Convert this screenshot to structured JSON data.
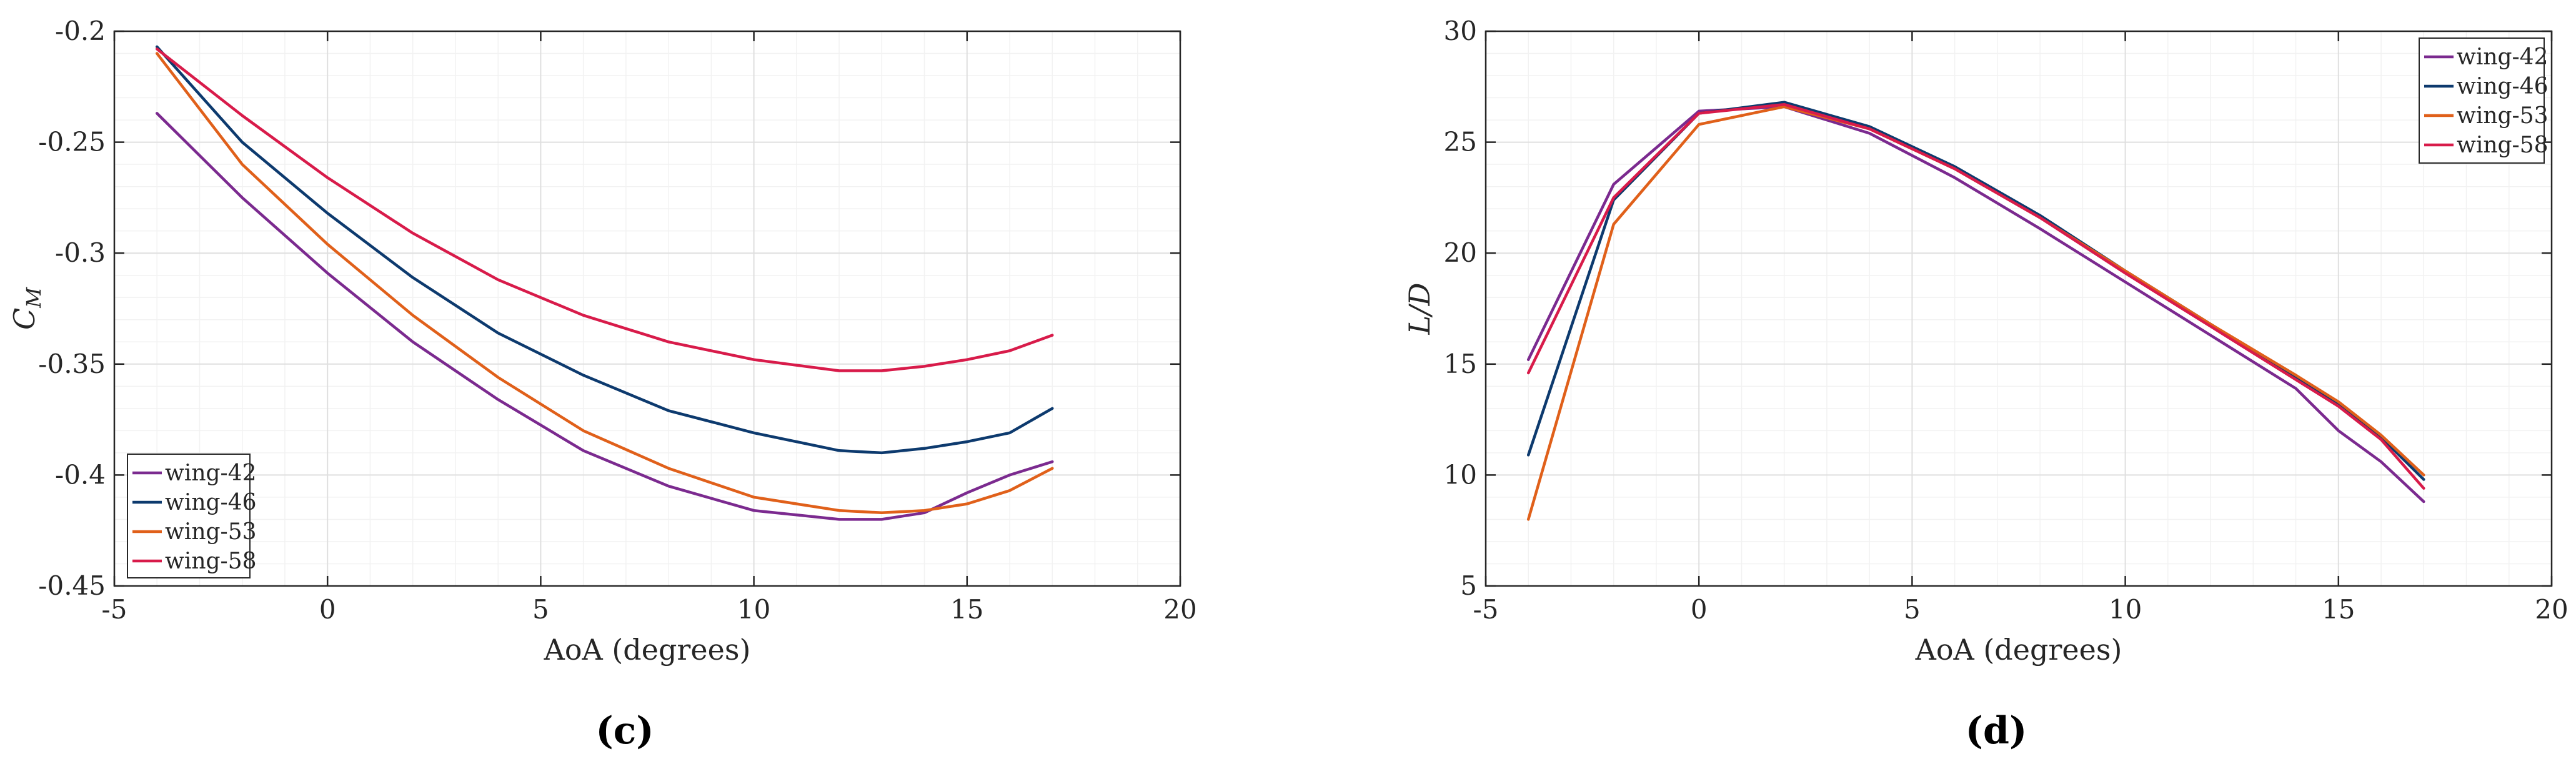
{
  "chart_data": [
    {
      "type": "line",
      "caption": "(c)",
      "ylabel_main": "C",
      "ylabel_sub": "M",
      "xlabel": "AoA (degrees)",
      "xlim": [
        -5,
        20
      ],
      "ylim": [
        -0.45,
        -0.2
      ],
      "xticks": [
        -5,
        0,
        5,
        10,
        15,
        20
      ],
      "yticks": [
        -0.45,
        -0.4,
        -0.35,
        -0.3,
        -0.25,
        -0.2
      ],
      "ytick_labels": [
        "-0.45",
        "-0.4",
        "-0.35",
        "-0.3",
        "-0.25",
        "-0.2"
      ],
      "grid": true,
      "legend_position": "bottom-left",
      "series": [
        {
          "name": "wing-42",
          "color": "#7b2a8f",
          "x": [
            -4,
            -2,
            0,
            2,
            4,
            6,
            8,
            10,
            12,
            13,
            14,
            15,
            16,
            17
          ],
          "y": [
            -0.237,
            -0.275,
            -0.309,
            -0.34,
            -0.366,
            -0.389,
            -0.405,
            -0.416,
            -0.42,
            -0.42,
            -0.417,
            -0.408,
            -0.4,
            -0.394
          ]
        },
        {
          "name": "wing-46",
          "color": "#0d3a6e",
          "x": [
            -4,
            -2,
            0,
            2,
            4,
            6,
            8,
            10,
            12,
            13,
            14,
            15,
            16,
            17
          ],
          "y": [
            -0.207,
            -0.25,
            -0.282,
            -0.311,
            -0.336,
            -0.355,
            -0.371,
            -0.381,
            -0.389,
            -0.39,
            -0.388,
            -0.385,
            -0.381,
            -0.37
          ]
        },
        {
          "name": "wing-53",
          "color": "#e0601a",
          "x": [
            -4,
            -2,
            0,
            2,
            4,
            6,
            8,
            10,
            12,
            13,
            14,
            15,
            16,
            17
          ],
          "y": [
            -0.21,
            -0.26,
            -0.296,
            -0.328,
            -0.356,
            -0.38,
            -0.397,
            -0.41,
            -0.416,
            -0.417,
            -0.416,
            -0.413,
            -0.407,
            -0.397
          ]
        },
        {
          "name": "wing-58",
          "color": "#d81b4a",
          "x": [
            -4,
            -2,
            0,
            2,
            4,
            6,
            8,
            10,
            12,
            13,
            14,
            15,
            16,
            17
          ],
          "y": [
            -0.208,
            -0.238,
            -0.266,
            -0.291,
            -0.312,
            -0.328,
            -0.34,
            -0.348,
            -0.353,
            -0.353,
            -0.351,
            -0.348,
            -0.344,
            -0.337
          ]
        }
      ]
    },
    {
      "type": "line",
      "caption": "(d)",
      "ylabel_main": "L/D",
      "xlabel": "AoA (degrees)",
      "xlim": [
        -5,
        20
      ],
      "ylim": [
        5,
        30
      ],
      "xticks": [
        -5,
        0,
        5,
        10,
        15,
        20
      ],
      "yticks": [
        5,
        10,
        15,
        20,
        25,
        30
      ],
      "ytick_labels": [
        "5",
        "10",
        "15",
        "20",
        "25",
        "30"
      ],
      "grid": true,
      "legend_position": "top-right",
      "series": [
        {
          "name": "wing-42",
          "color": "#7b2a8f",
          "x": [
            -4,
            -2,
            0,
            2,
            4,
            6,
            8,
            10,
            12,
            14,
            15,
            16,
            17
          ],
          "y": [
            15.2,
            23.1,
            26.4,
            26.6,
            25.4,
            23.4,
            21.1,
            18.7,
            16.3,
            13.9,
            12.0,
            10.6,
            8.8
          ]
        },
        {
          "name": "wing-46",
          "color": "#0d3a6e",
          "x": [
            -4,
            -2,
            0,
            2,
            4,
            6,
            8,
            10,
            12,
            14,
            15,
            16,
            17
          ],
          "y": [
            10.9,
            22.4,
            26.3,
            26.8,
            25.7,
            23.9,
            21.7,
            19.2,
            16.8,
            14.4,
            13.2,
            11.7,
            9.8
          ]
        },
        {
          "name": "wing-53",
          "color": "#e0601a",
          "x": [
            -4,
            -2,
            0,
            2,
            4,
            6,
            8,
            10,
            12,
            14,
            15,
            16,
            17
          ],
          "y": [
            8.0,
            21.3,
            25.8,
            26.6,
            25.6,
            23.8,
            21.6,
            19.2,
            16.8,
            14.5,
            13.3,
            11.8,
            10.0
          ]
        },
        {
          "name": "wing-58",
          "color": "#d81b4a",
          "x": [
            -4,
            -2,
            0,
            2,
            4,
            6,
            8,
            10,
            12,
            14,
            15,
            16,
            17
          ],
          "y": [
            14.6,
            22.5,
            26.3,
            26.7,
            25.6,
            23.8,
            21.6,
            19.1,
            16.7,
            14.3,
            13.1,
            11.6,
            9.4
          ]
        }
      ]
    }
  ]
}
